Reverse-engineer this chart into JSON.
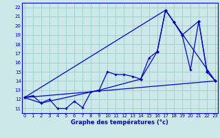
{
  "xlabel": "Graphe des températures (°c)",
  "ylabel_ticks": [
    11,
    12,
    13,
    14,
    15,
    16,
    17,
    18,
    19,
    20,
    21,
    22
  ],
  "xlabel_ticks": [
    0,
    1,
    2,
    3,
    4,
    5,
    6,
    7,
    8,
    9,
    10,
    11,
    12,
    13,
    14,
    15,
    16,
    17,
    18,
    19,
    20,
    21,
    22,
    23
  ],
  "xlim": [
    -0.3,
    23.3
  ],
  "ylim": [
    10.5,
    22.5
  ],
  "background_color": "#cce8e8",
  "grid_color": "#99cccc",
  "line_color": "#0000cc",
  "series1_x": [
    0,
    1,
    2,
    3,
    4,
    5,
    6,
    7,
    8,
    9,
    10,
    11,
    12,
    13,
    14,
    15,
    16,
    17,
    18,
    19,
    20,
    21,
    22,
    23
  ],
  "series1_y": [
    12.2,
    12.4,
    11.6,
    12.0,
    11.0,
    11.0,
    11.8,
    11.1,
    12.8,
    13.0,
    15.0,
    14.7,
    14.7,
    14.5,
    14.2,
    16.5,
    17.2,
    21.7,
    20.4,
    19.0,
    15.2,
    20.5,
    15.0,
    14.0
  ],
  "series2_x": [
    0,
    2,
    9,
    14,
    16,
    17,
    18,
    19,
    21,
    22,
    23
  ],
  "series2_y": [
    12.2,
    11.6,
    13.0,
    14.2,
    17.2,
    21.7,
    20.4,
    19.0,
    20.5,
    15.0,
    14.0
  ],
  "series3_x": [
    0,
    23
  ],
  "series3_y": [
    12.2,
    14.0
  ],
  "series4_x": [
    0,
    17,
    23
  ],
  "series4_y": [
    12.2,
    21.7,
    14.0
  ]
}
